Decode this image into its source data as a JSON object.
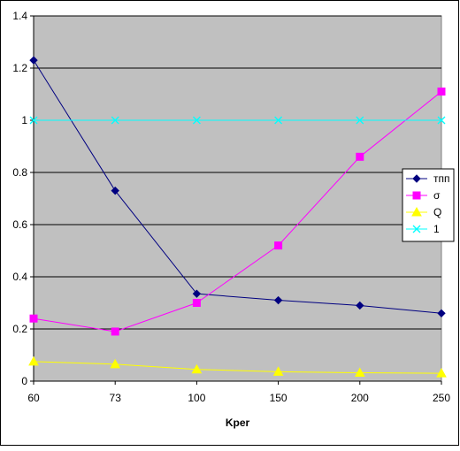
{
  "chart_data": {
    "type": "line",
    "title": "",
    "xlabel": "Kper",
    "ylabel": "",
    "categories": [
      "60",
      "73",
      "100",
      "150",
      "200",
      "250"
    ],
    "ylim": [
      0,
      1.4
    ],
    "yticks": [
      "0",
      "0.2",
      "0.4",
      "0.6",
      "0.8",
      "1",
      "1.2",
      "1.4"
    ],
    "grid": "horizontal",
    "legend_position": "right",
    "plot_background": "#c0c0c0",
    "series": [
      {
        "name": "тпп",
        "color": "#000080",
        "marker": "diamond",
        "values": [
          1.23,
          0.73,
          0.335,
          0.31,
          0.29,
          0.26
        ]
      },
      {
        "name": "σ",
        "color": "#ff00ff",
        "marker": "square",
        "values": [
          0.24,
          0.19,
          0.3,
          0.52,
          0.86,
          1.11
        ]
      },
      {
        "name": "Q",
        "color": "#ffff00",
        "marker": "triangle",
        "values": [
          0.075,
          0.065,
          0.045,
          0.036,
          0.032,
          0.03
        ]
      },
      {
        "name": "1",
        "color": "#00ffff",
        "marker": "x",
        "values": [
          1,
          1,
          1,
          1,
          1,
          1
        ]
      }
    ]
  }
}
